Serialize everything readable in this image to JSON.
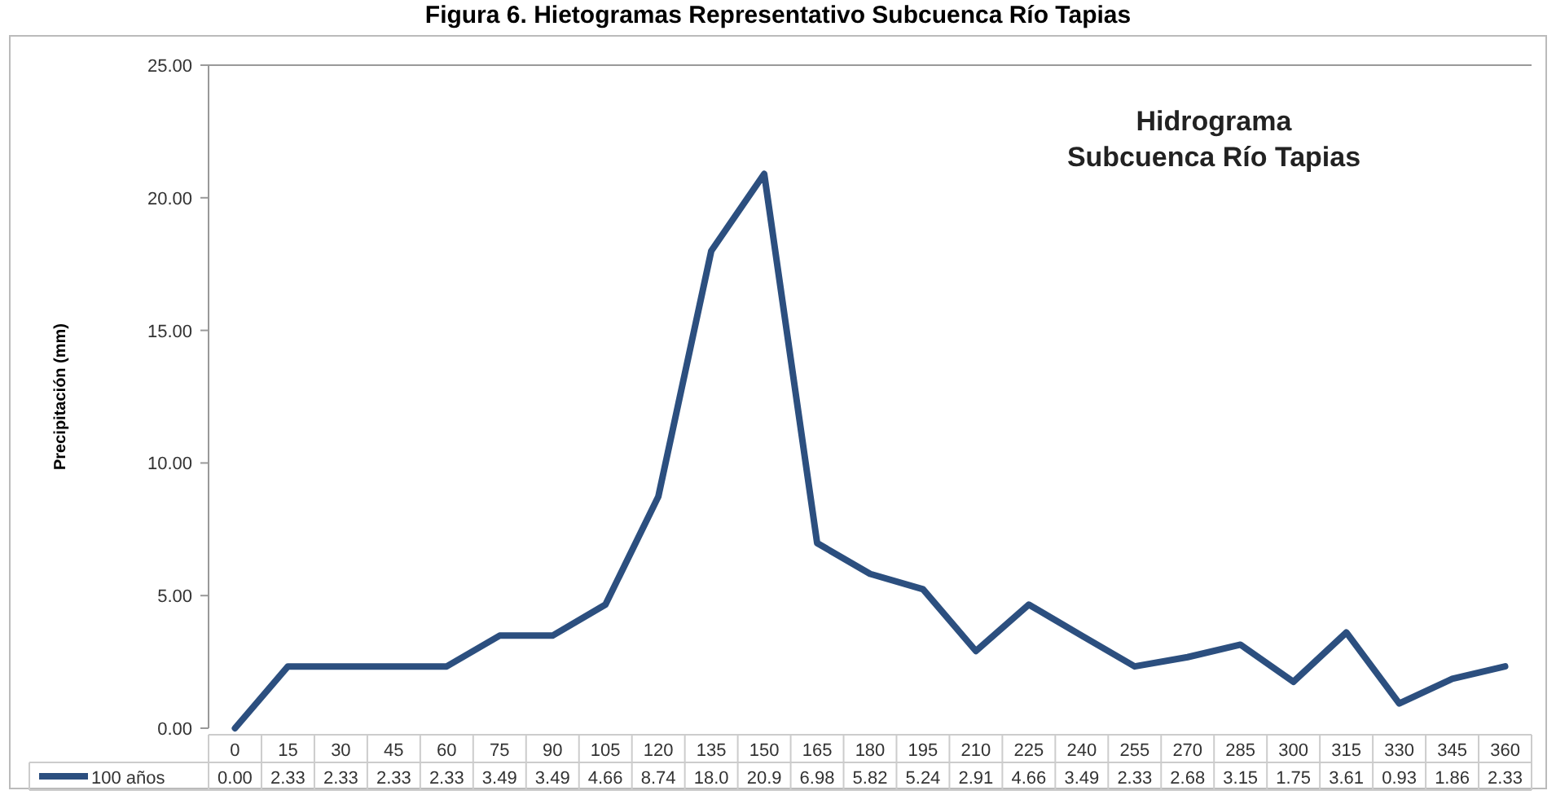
{
  "chart_data": {
    "type": "line",
    "title": "Figura 6. Hietogramas Representativo Subcuenca Río Tapias",
    "ylabel": "Precipitación (mm)",
    "annotations": [
      "Hidrograma\nSubcuenca Río Tapias"
    ],
    "categories": [
      "0",
      "15",
      "30",
      "45",
      "60",
      "75",
      "90",
      "105",
      "120",
      "135",
      "150",
      "165",
      "180",
      "195",
      "210",
      "225",
      "240",
      "255",
      "270",
      "285",
      "300",
      "315",
      "330",
      "345",
      "360"
    ],
    "series": [
      {
        "name": "100 años",
        "color": "#2c4f7f",
        "values": [
          0,
          2.33,
          2.33,
          2.33,
          2.33,
          3.49,
          3.49,
          4.66,
          8.74,
          18.0,
          20.9,
          6.98,
          5.82,
          5.24,
          2.91,
          4.66,
          3.49,
          2.33,
          2.68,
          3.15,
          1.75,
          3.61,
          0.93,
          1.86,
          2.33
        ],
        "value_labels": [
          "0.00",
          "2.33",
          "2.33",
          "2.33",
          "2.33",
          "3.49",
          "3.49",
          "4.66",
          "8.74",
          "18.0",
          "20.9",
          "6.98",
          "5.82",
          "5.24",
          "2.91",
          "4.66",
          "3.49",
          "2.33",
          "2.68",
          "3.15",
          "1.75",
          "3.61",
          "0.93",
          "1.86",
          "2.33"
        ]
      }
    ],
    "ylim": [
      0,
      25
    ],
    "yticks": [
      {
        "value": 0,
        "label": "0.00"
      },
      {
        "value": 5,
        "label": "5.00"
      },
      {
        "value": 10,
        "label": "10.00"
      },
      {
        "value": 15,
        "label": "15.00"
      },
      {
        "value": 20,
        "label": "20.00"
      },
      {
        "value": 25,
        "label": "25.00"
      }
    ],
    "legend": "bottom",
    "line_style": "solid",
    "marker": "none"
  }
}
